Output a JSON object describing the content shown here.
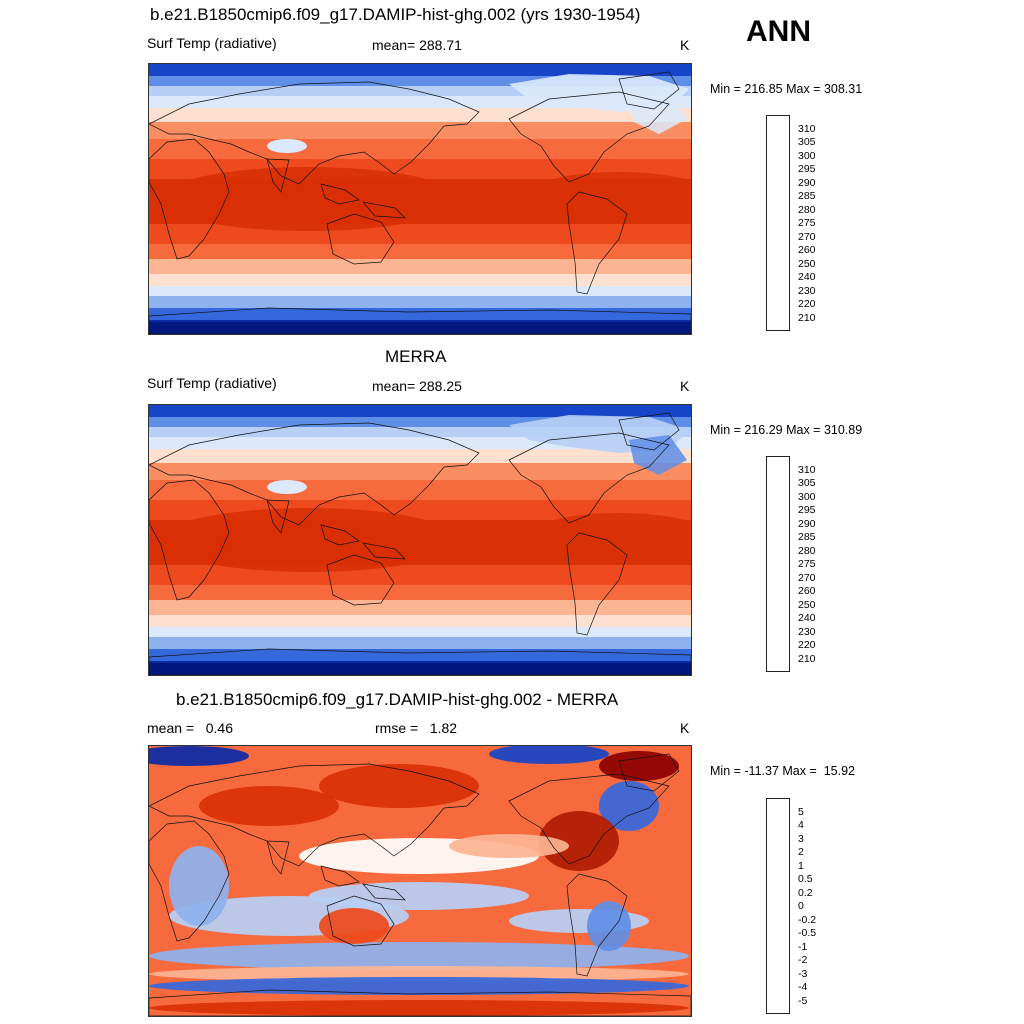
{
  "season": "ANN",
  "panels": [
    {
      "title": "b.e21.B1850cmip6.f09_g17.DAMIP-hist-ghg.002 (yrs 1930-1954)",
      "left_label": "Surf Temp (radiative)",
      "center_label": "mean= 288.71",
      "right_label": "K",
      "minmax": "Min = 216.85 Max = 308.31",
      "colorbar_labels": [
        "310",
        "305",
        "300",
        "295",
        "290",
        "285",
        "280",
        "275",
        "270",
        "260",
        "250",
        "240",
        "230",
        "220",
        "210"
      ]
    },
    {
      "title": "MERRA",
      "left_label": "Surf Temp (radiative)",
      "center_label": "mean= 288.25",
      "right_label": "K",
      "minmax": "Min = 216.29 Max = 310.89",
      "colorbar_labels": [
        "310",
        "305",
        "300",
        "295",
        "290",
        "285",
        "280",
        "275",
        "270",
        "260",
        "250",
        "240",
        "230",
        "220",
        "210"
      ]
    },
    {
      "title": "b.e21.B1850cmip6.f09_g17.DAMIP-hist-ghg.002 - MERRA",
      "left_label": "mean =   0.46",
      "center_label": "rmse =   1.82",
      "right_label": "K",
      "minmax": "Min = -11.37 Max =  15.92",
      "colorbar_labels": [
        "5",
        "4",
        "3",
        "2",
        "1",
        "0.5",
        "0.2",
        "0",
        "-0.2",
        "-0.5",
        "-1",
        "-2",
        "-3",
        "-4",
        "-5"
      ]
    }
  ],
  "colors": {
    "temp_scale": [
      "#8b0000",
      "#b01c02",
      "#d93006",
      "#ee4a1d",
      "#f76a3d",
      "#fb8d62",
      "#fcb592",
      "#fde0cf",
      "#dce9fb",
      "#b7cff5",
      "#8eb2ee",
      "#5f8ee6",
      "#3468dc",
      "#1744c8",
      "#0a2aa8",
      "#001880"
    ],
    "diff_scale": [
      "#8b0000",
      "#b01c02",
      "#d93006",
      "#ee4a1d",
      "#f76a3d",
      "#fb8d62",
      "#fcb592",
      "#fde0cf",
      "#ffffff",
      "#dce9fb",
      "#b7cff5",
      "#8eb2ee",
      "#5f8ee6",
      "#3468dc",
      "#1744c8",
      "#0a2aa8",
      "#001880"
    ]
  }
}
